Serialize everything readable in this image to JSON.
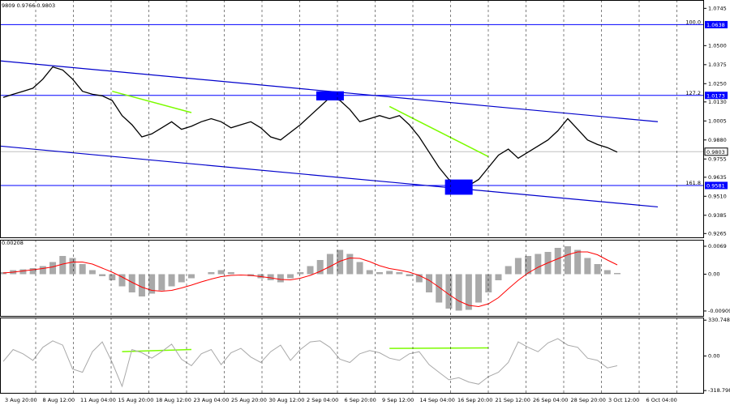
{
  "chart_data": {
    "type": "line",
    "header": "9809 0.9766 0.9803",
    "price_panel": {
      "ylim": [
        0.924,
        1.08
      ],
      "y_ticks": [
        "1.0745",
        "1.0500",
        "1.0375",
        "1.0250",
        "1.0130",
        "1.0005",
        "0.9880",
        "0.9755",
        "0.9635",
        "0.9510",
        "0.9385",
        "0.9265"
      ],
      "levels": [
        {
          "label": "100.0",
          "value": "1.0638",
          "price": 1.0638
        },
        {
          "label": "127.2",
          "value": "1.0173",
          "price": 1.0173
        },
        {
          "label": "161.8",
          "value": "0.9581",
          "price": 0.9581
        }
      ],
      "current": {
        "value": "0.9803",
        "price": 0.9803
      },
      "close": [
        1.016,
        1.018,
        1.02,
        1.022,
        1.028,
        1.036,
        1.034,
        1.028,
        1.02,
        1.018,
        1.017,
        1.014,
        1.004,
        0.998,
        0.99,
        0.992,
        0.996,
        1.0,
        0.995,
        0.997,
        1.0,
        1.002,
        1.0,
        0.996,
        0.998,
        1.0,
        0.996,
        0.99,
        0.988,
        0.993,
        0.998,
        1.004,
        1.01,
        1.016,
        1.014,
        1.008,
        1.0,
        1.002,
        1.004,
        1.002,
        1.004,
        0.998,
        0.99,
        0.98,
        0.97,
        0.962,
        0.96,
        0.958,
        0.962,
        0.97,
        0.978,
        0.982,
        0.976,
        0.98,
        0.984,
        0.988,
        0.994,
        1.002,
        0.995,
        0.988,
        0.985,
        0.983,
        0.98
      ],
      "fib_high": 1.0638
    },
    "macd_panel": {
      "ylim": [
        -0.0103,
        0.0085
      ],
      "y_ticks": [
        "0.0069",
        "0.00",
        "-0.00909"
      ],
      "header": "0.00208",
      "histogram": [
        0.0005,
        0.001,
        0.0012,
        0.0015,
        0.002,
        0.003,
        0.0045,
        0.004,
        0.0025,
        0.001,
        -0.0005,
        -0.0015,
        -0.003,
        -0.0045,
        -0.0055,
        -0.0048,
        -0.004,
        -0.003,
        -0.002,
        -0.001,
        0.0,
        0.0005,
        0.001,
        0.0005,
        0.0,
        -0.0005,
        -0.001,
        -0.0015,
        -0.002,
        -0.001,
        0.0005,
        0.002,
        0.0035,
        0.005,
        0.006,
        0.005,
        0.003,
        0.001,
        0.0005,
        0.0008,
        0.0005,
        -0.0005,
        -0.002,
        -0.0045,
        -0.007,
        -0.0085,
        -0.009,
        -0.0088,
        -0.007,
        -0.0045,
        -0.0015,
        0.002,
        0.004,
        0.0045,
        0.005,
        0.0055,
        0.0065,
        0.0069,
        0.006,
        0.004,
        0.0025,
        0.001,
        0.0003
      ],
      "signal": [
        0.0003,
        0.0005,
        0.0008,
        0.0011,
        0.0014,
        0.0018,
        0.0025,
        0.003,
        0.003,
        0.0025,
        0.0015,
        0.0005,
        -0.0007,
        -0.002,
        -0.0032,
        -0.004,
        -0.0042,
        -0.004,
        -0.0034,
        -0.0027,
        -0.0019,
        -0.0012,
        -0.0006,
        -0.0003,
        -0.0002,
        -0.0003,
        -0.0006,
        -0.0009,
        -0.0013,
        -0.0014,
        -0.001,
        -0.0003,
        0.0007,
        0.0019,
        0.0032,
        0.004,
        0.0039,
        0.0031,
        0.0021,
        0.0014,
        0.001,
        0.0005,
        -0.0003,
        -0.0015,
        -0.0032,
        -0.005,
        -0.0066,
        -0.0077,
        -0.008,
        -0.0073,
        -0.0058,
        -0.0036,
        -0.0015,
        0.0003,
        0.0017,
        0.0028,
        0.0038,
        0.0048,
        0.0055,
        0.0055,
        0.0048,
        0.0035,
        0.0023
      ]
    },
    "cci_panel": {
      "ylim": [
        -340,
        355
      ],
      "y_ticks": [
        "330.7482",
        "0.00",
        "-318.798"
      ],
      "values": [
        -50,
        60,
        20,
        -40,
        80,
        140,
        100,
        -120,
        -150,
        40,
        130,
        -60,
        -280,
        60,
        30,
        -20,
        40,
        110,
        -30,
        -90,
        20,
        60,
        -80,
        30,
        70,
        -10,
        -60,
        40,
        100,
        -40,
        60,
        130,
        140,
        80,
        -30,
        -60,
        20,
        50,
        30,
        -20,
        -40,
        20,
        40,
        -80,
        -150,
        -220,
        -200,
        -240,
        -260,
        -190,
        -150,
        -60,
        130,
        80,
        40,
        120,
        160,
        100,
        80,
        -20,
        -40,
        -110,
        -90
      ]
    },
    "channel_upper": [
      1.04,
      1.0
    ],
    "channel_lower": [
      0.984,
      0.944
    ],
    "divergences": [
      {
        "panel": "price",
        "from": [
          11,
          1.02
        ],
        "to": [
          19,
          1.006
        ]
      },
      {
        "panel": "price",
        "from": [
          39,
          1.01
        ],
        "to": [
          49,
          0.977
        ]
      },
      {
        "panel": "cci",
        "from": [
          12,
          40
        ],
        "to": [
          19,
          60
        ]
      },
      {
        "panel": "cci",
        "from": [
          39,
          70
        ],
        "to": [
          49,
          75
        ]
      }
    ],
    "boxes": [
      {
        "panel": "price",
        "at": 33,
        "top": 1.02,
        "bottom": 1.014
      },
      {
        "panel": "price",
        "at": 46,
        "top": 0.962,
        "bottom": 0.952
      }
    ],
    "x_ticks": [
      "3 Aug 20:00",
      "8 Aug 12:00",
      "11 Aug 04:00",
      "15 Aug 20:00",
      "18 Aug 12:00",
      "23 Aug 04:00",
      "25 Aug 20:00",
      "30 Aug 12:00",
      "2 Sep 04:00",
      "6 Sep 20:00",
      "9 Sep 12:00",
      "14 Sep 04:00",
      "16 Sep 20:00",
      "21 Sep 12:00",
      "26 Sep 04:00",
      "28 Sep 20:00",
      "3 Oct 12:00",
      "6 Oct 04:00"
    ],
    "colors": {
      "channel": "#0000cc",
      "level": "#0000ff",
      "divergence": "#7cfc00",
      "signal": "#ff0000",
      "histogram": "#a9a9a9",
      "cci": "#a9a9a9",
      "box": "#0000ff",
      "grid": "#000000"
    }
  }
}
